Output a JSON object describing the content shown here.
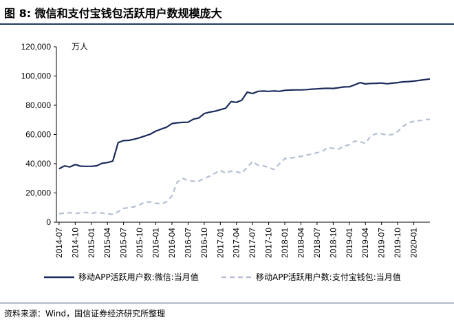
{
  "title": "图 8:  微信和支付宝钱包活跃用户数规模庞大",
  "source": "资料来源：Wind，国信证券经济研究所整理",
  "colors": {
    "wechat": "#1b2a5c",
    "alipay": "#b4bfd3",
    "rule": "#1f3a68",
    "axis": "#000000"
  },
  "chart_data": {
    "type": "line",
    "unit_label": "万人",
    "ylim": [
      0,
      120000
    ],
    "yticks": [
      0,
      20000,
      40000,
      60000,
      80000,
      100000,
      120000
    ],
    "ytick_labels": [
      "0",
      "20,000",
      "40,000",
      "60,000",
      "80,000",
      "100,000",
      "120,000"
    ],
    "x_start": "2014-07",
    "xtick_labels": [
      "2014-07",
      "2014-10",
      "2015-01",
      "2015-04",
      "2015-07",
      "2015-10",
      "2016-01",
      "2016-04",
      "2016-07",
      "2016-10",
      "2017-01",
      "2017-04",
      "2017-07",
      "2017-10",
      "2018-01",
      "2018-04",
      "2018-07",
      "2018-10",
      "2019-01",
      "2019-04",
      "2019-07",
      "2019-10",
      "2020-01"
    ],
    "grid": false,
    "legend_position": "bottom",
    "series": [
      {
        "name": "移动APP活跃用户数:微信:当月值",
        "style": "solid",
        "values": [
          36500,
          38500,
          37800,
          39500,
          38300,
          38200,
          38200,
          38600,
          40300,
          40800,
          41800,
          54500,
          55800,
          56000,
          56800,
          57800,
          59000,
          60300,
          62300,
          63700,
          65000,
          67500,
          68000,
          68300,
          68400,
          70500,
          71300,
          74300,
          75300,
          75900,
          77000,
          78000,
          82500,
          82000,
          83500,
          89000,
          88000,
          89500,
          89700,
          89500,
          89800,
          89500,
          90200,
          90400,
          90500,
          90500,
          90700,
          91000,
          91200,
          91500,
          91600,
          91500,
          92000,
          92500,
          92600,
          94000,
          95500,
          94600,
          94900,
          95000,
          95200,
          94700,
          95100,
          95500,
          96000,
          96200,
          96500,
          97000,
          97500,
          98000
        ]
      },
      {
        "name": "移动APP活跃用户数:支付宝钱包:当月值",
        "style": "dashed",
        "values": [
          5800,
          6200,
          6500,
          5900,
          6500,
          6700,
          6000,
          6800,
          6300,
          5600,
          5400,
          7200,
          9500,
          9900,
          10600,
          12000,
          13800,
          13900,
          13000,
          12500,
          14000,
          18000,
          27500,
          30000,
          28500,
          28000,
          28200,
          30000,
          31500,
          33500,
          35500,
          33500,
          35000,
          34500,
          33500,
          37500,
          41500,
          39000,
          38500,
          37500,
          36000,
          40000,
          43500,
          43800,
          44500,
          45000,
          46000,
          46500,
          47500,
          48500,
          51000,
          50500,
          50000,
          52000,
          53000,
          55500,
          55000,
          54000,
          59000,
          60500,
          60500,
          59500,
          60000,
          62000,
          65500,
          68000,
          69000,
          69500,
          70000,
          70500
        ]
      }
    ]
  }
}
